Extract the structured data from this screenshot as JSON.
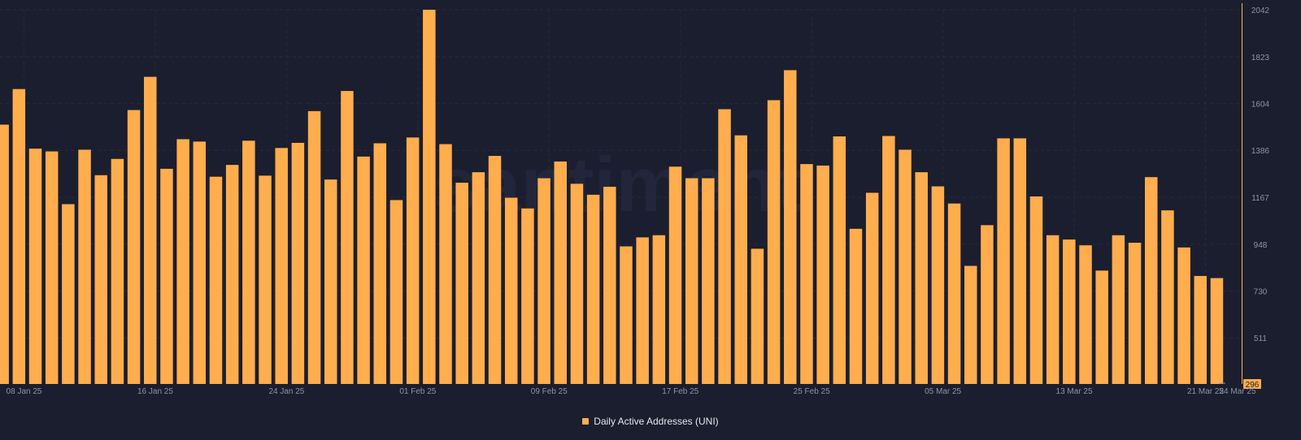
{
  "watermark": "santiment",
  "chart_data": {
    "type": "bar",
    "series": [
      {
        "name": "Daily Active Addresses (UNI)",
        "color": "#ffad4d",
        "values": [
          1506,
          1672,
          1394,
          1381,
          1135,
          1389,
          1270,
          1346,
          1574,
          1729,
          1300,
          1438,
          1427,
          1263,
          1318,
          1431,
          1268,
          1397,
          1421,
          1569,
          1250,
          1663,
          1357,
          1419,
          1154,
          1446,
          2042,
          1415,
          1235,
          1284,
          1360,
          1165,
          1115,
          1256,
          1334,
          1230,
          1179,
          1216,
          938,
          980,
          990,
          1310,
          1256,
          1256,
          1578,
          1456,
          927,
          1620,
          1760,
          1322,
          1315,
          1451,
          1020,
          1188,
          1453,
          1389,
          1284,
          1218,
          1138,
          847,
          1037,
          1442,
          1442,
          1171,
          990,
          970,
          943,
          825,
          990,
          955,
          1261,
          1106,
          933,
          800,
          790
        ]
      }
    ],
    "x_tick_labels": [
      "08 Jan 25",
      "16 Jan 25",
      "24 Jan 25",
      "01 Feb 25",
      "09 Feb 25",
      "17 Feb 25",
      "25 Feb 25",
      "05 Mar 25",
      "13 Mar 25",
      "21 Mar 25",
      "24 Mar 25"
    ],
    "y_tick_labels": [
      "2042",
      "1823",
      "1604",
      "1386",
      "1167",
      "948",
      "730",
      "511"
    ],
    "y_current_label": "296",
    "ylim": [
      296,
      2042
    ],
    "axis_color": "#ffad4d",
    "grid": true,
    "legend_position": "bottom-center"
  }
}
